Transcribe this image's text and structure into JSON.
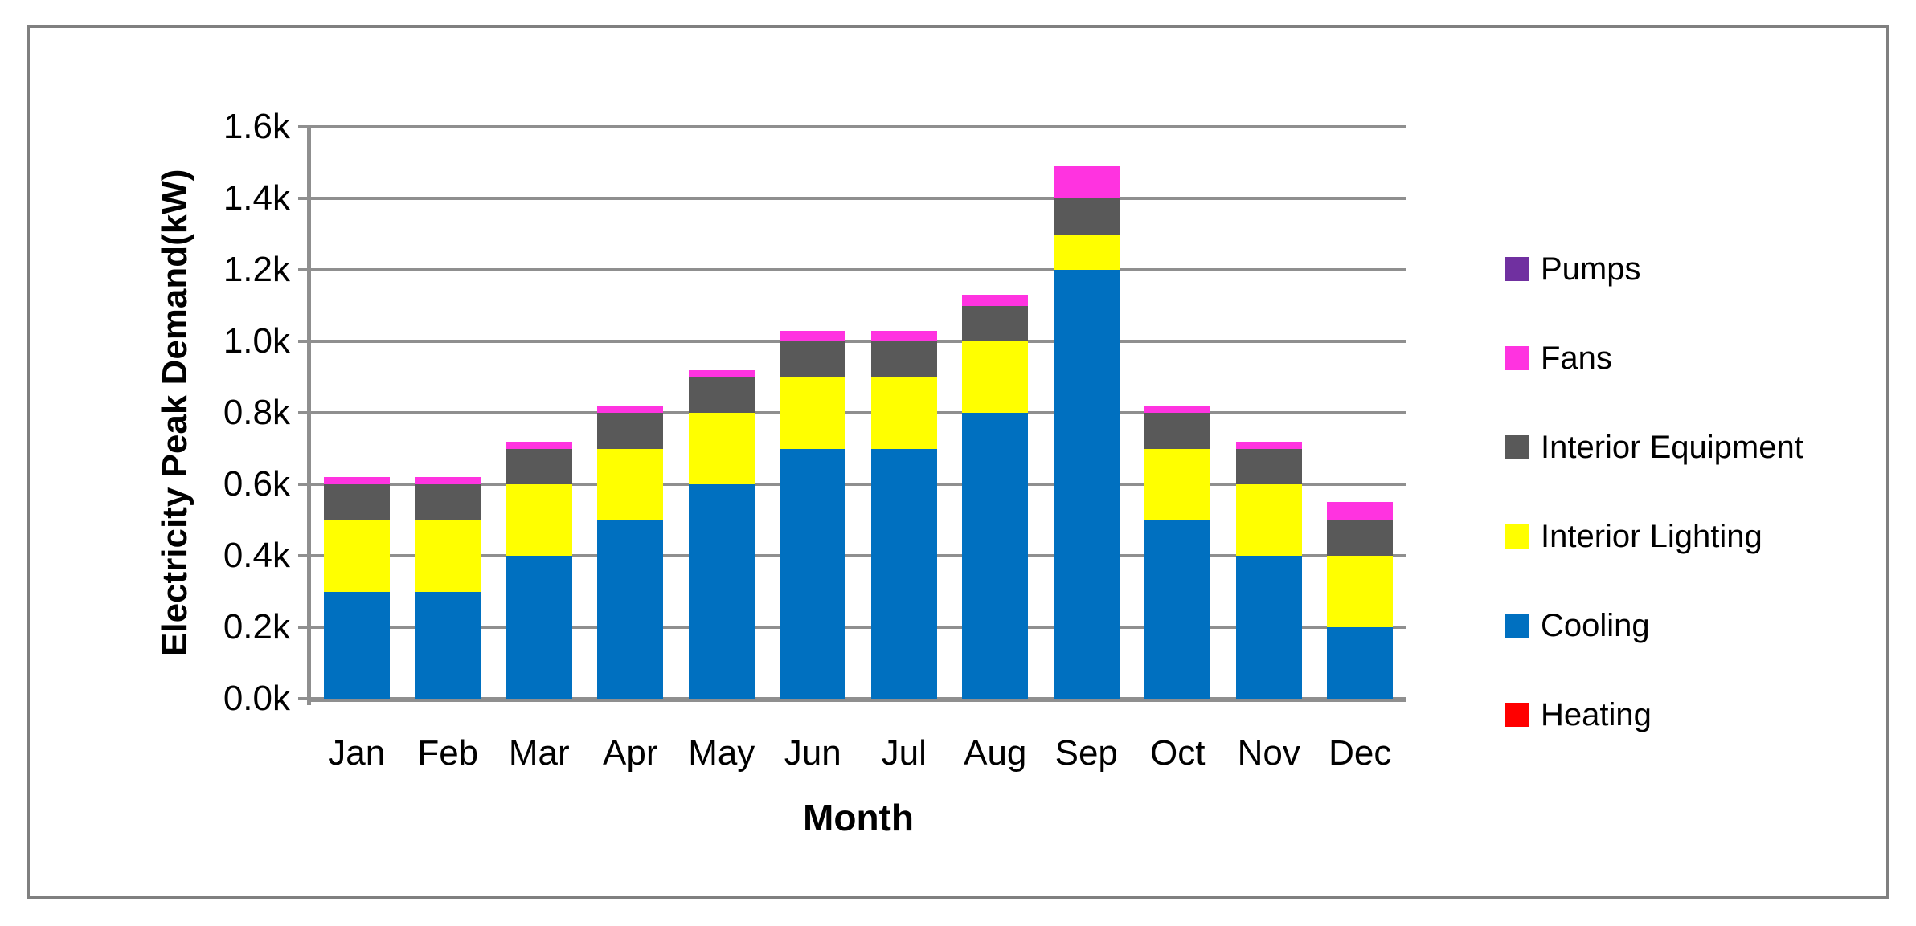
{
  "chart_data": {
    "type": "bar",
    "stacked": true,
    "title": "",
    "xlabel": "Month",
    "ylabel": "Electricity Peak Demand(kW)",
    "unit": "kW",
    "categories": [
      "Jan",
      "Feb",
      "Mar",
      "Apr",
      "May",
      "Jun",
      "Jul",
      "Aug",
      "Sep",
      "Oct",
      "Nov",
      "Dec"
    ],
    "ylim": [
      0,
      1600
    ],
    "ytick_step": 200,
    "ytick_labels": [
      "0.0k",
      "0.2k",
      "0.4k",
      "0.6k",
      "0.8k",
      "1.0k",
      "1.2k",
      "1.4k",
      "1.6k"
    ],
    "grid": true,
    "legend_position": "right",
    "series": [
      {
        "name": "Heating",
        "color": "#FF0000",
        "values": [
          0,
          0,
          0,
          0,
          0,
          0,
          0,
          0,
          0,
          0,
          0,
          0
        ]
      },
      {
        "name": "Cooling",
        "color": "#0070C0",
        "values": [
          300,
          300,
          400,
          500,
          600,
          700,
          700,
          800,
          1200,
          500,
          400,
          200
        ]
      },
      {
        "name": "Interior Lighting",
        "color": "#FFFF00",
        "values": [
          200,
          200,
          200,
          200,
          200,
          200,
          200,
          200,
          100,
          200,
          200,
          200
        ]
      },
      {
        "name": "Interior Equipment",
        "color": "#595959",
        "values": [
          100,
          100,
          100,
          100,
          100,
          100,
          100,
          100,
          100,
          100,
          100,
          100
        ]
      },
      {
        "name": "Fans",
        "color": "#FF33E0",
        "values": [
          20,
          20,
          20,
          20,
          20,
          30,
          30,
          30,
          90,
          20,
          20,
          50
        ]
      },
      {
        "name": "Pumps",
        "color": "#7030A0",
        "values": [
          0,
          0,
          0,
          0,
          0,
          0,
          0,
          0,
          0,
          0,
          0,
          0
        ]
      }
    ],
    "legend": [
      {
        "label": "Pumps",
        "color": "#7030A0"
      },
      {
        "label": "Fans",
        "color": "#FF33E0"
      },
      {
        "label": "Interior Equipment",
        "color": "#595959"
      },
      {
        "label": "Interior Lighting",
        "color": "#FFFF00"
      },
      {
        "label": "Cooling",
        "color": "#0070C0"
      },
      {
        "label": "Heating",
        "color": "#FF0000"
      }
    ]
  },
  "colors": {
    "background": "#FFFFFF",
    "frame": "#808080",
    "gridline": "#8F8F8F",
    "axis": "#8F8F8F",
    "text": "#000000"
  }
}
